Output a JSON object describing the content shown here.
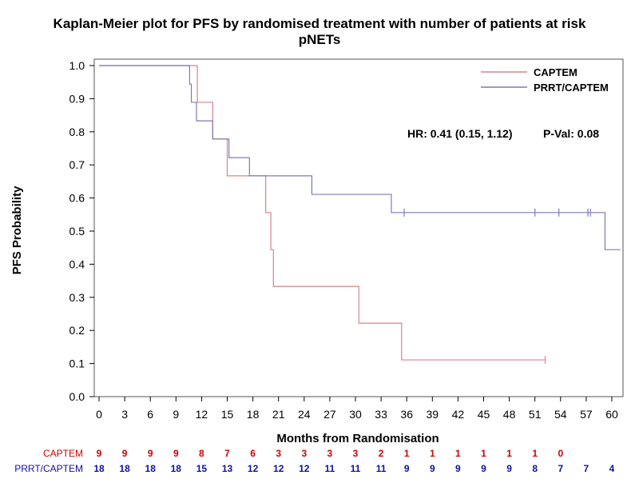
{
  "chart_data": {
    "type": "line",
    "title": "Kaplan-Meier plot for PFS by randomised treatment with number of patients at risk",
    "subtitle": "pNETs",
    "xlabel": "Months from Randomisation",
    "ylabel": "PFS Probability",
    "xlim": [
      0,
      61
    ],
    "ylim": [
      0,
      1
    ],
    "xticks": [
      0,
      3,
      6,
      9,
      12,
      15,
      18,
      21,
      24,
      27,
      30,
      33,
      36,
      39,
      42,
      45,
      48,
      51,
      54,
      57,
      60
    ],
    "yticks": [
      "0.0",
      "0.1",
      "0.2",
      "0.3",
      "0.4",
      "0.5",
      "0.6",
      "0.7",
      "0.8",
      "0.9",
      "1.0"
    ],
    "grid": false,
    "legend_position": "top-right",
    "annotation": {
      "hr": "HR: 0.41 (0.15, 1.12)",
      "pval": "P-Val:  0.08"
    },
    "series": [
      {
        "name": "CAPTEM",
        "color": "#d9838a",
        "steps": [
          [
            0,
            1.0
          ],
          [
            11.5,
            0.889
          ],
          [
            13.3,
            0.778
          ],
          [
            15.0,
            0.667
          ],
          [
            17.6,
            0.667
          ],
          [
            19.5,
            0.556
          ],
          [
            20.1,
            0.444
          ],
          [
            20.4,
            0.333
          ],
          [
            30.4,
            0.222
          ],
          [
            35.4,
            0.111
          ],
          [
            52.2,
            0.111
          ]
        ],
        "censored": [
          [
            52.2,
            0.111
          ]
        ]
      },
      {
        "name": "PRRT/CAPTEM",
        "color": "#7b7bb5",
        "steps": [
          [
            0,
            1.0
          ],
          [
            10.6,
            0.944
          ],
          [
            10.8,
            0.889
          ],
          [
            11.4,
            0.833
          ],
          [
            13.3,
            0.778
          ],
          [
            15.2,
            0.722
          ],
          [
            17.6,
            0.667
          ],
          [
            24.9,
            0.611
          ],
          [
            34.2,
            0.556
          ],
          [
            59.2,
            0.444
          ],
          [
            61.0,
            0.444
          ]
        ],
        "censored": [
          [
            35.7,
            0.556
          ],
          [
            51.0,
            0.556
          ],
          [
            53.8,
            0.556
          ],
          [
            57.2,
            0.556
          ],
          [
            57.5,
            0.556
          ]
        ]
      }
    ],
    "at_risk": {
      "times": [
        0,
        3,
        6,
        9,
        12,
        15,
        18,
        21,
        24,
        27,
        30,
        33,
        36,
        39,
        42,
        45,
        48,
        51,
        54,
        57,
        60
      ],
      "rows": [
        {
          "name": "CAPTEM",
          "color": "#d00000",
          "values": [
            "9",
            "9",
            "9",
            "9",
            "8",
            "7",
            "6",
            "3",
            "3",
            "3",
            "3",
            "2",
            "1",
            "1",
            "1",
            "1",
            "1",
            "1",
            "0",
            "",
            ""
          ]
        },
        {
          "name": "PRRT/CAPTEM",
          "color": "#1010a0",
          "values": [
            "18",
            "18",
            "18",
            "18",
            "15",
            "13",
            "12",
            "12",
            "12",
            "11",
            "11",
            "11",
            "9",
            "9",
            "9",
            "9",
            "9",
            "8",
            "7",
            "7",
            "4"
          ]
        }
      ]
    }
  }
}
